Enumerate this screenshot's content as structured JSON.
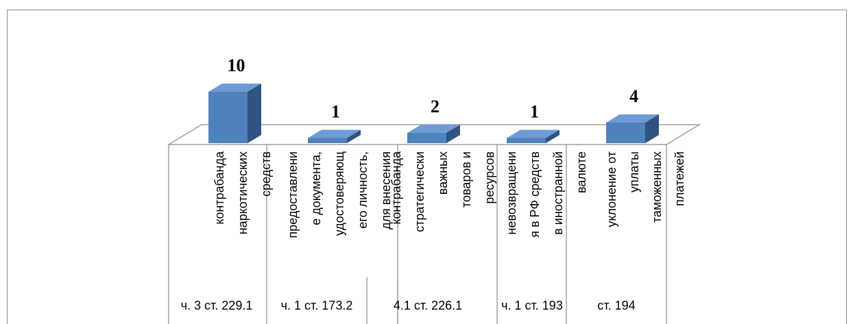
{
  "colors": {
    "bar_front": "#4f81bd",
    "bar_top": "#6f9bd4",
    "bar_side": "#2f5482",
    "axis_line": "#8c8c8c"
  },
  "chart_data": {
    "type": "bar",
    "title": "",
    "xlabel": "",
    "ylabel": "",
    "grid": false,
    "legend": "none",
    "categories": [
      "контрабанда наркотических средств",
      "предоставление документа, удостоверяющего личность, для внесения",
      "контрабанда стратегически важных товаров и ресурсов",
      "невозвращения в РФ средств в иностранной валюте",
      "уклонение от уплаты таможенных платежей"
    ],
    "values": [
      10,
      1,
      2,
      1,
      4
    ],
    "data_labels": [
      "10",
      "1",
      "2",
      "1",
      "4"
    ],
    "category_label_lines": [
      [
        "контрабанда",
        "наркотических",
        "средств"
      ],
      [
        "предоставлени",
        "е документа,",
        "удостоверяющ",
        "его личность,",
        "для внесения"
      ],
      [
        "контрабанда",
        "стратегически",
        "важных",
        "товаров и",
        "ресурсов"
      ],
      [
        "невозвращени",
        "я в РФ средств",
        "в иностранной",
        "валюте"
      ],
      [
        "уклонение от",
        "уплаты",
        "таможенных",
        "платежей"
      ]
    ],
    "group_labels": [
      "ч. 3 ст. 229.1",
      "ч. 1 ст. 173.2",
      "4.1 ст. 226.1",
      "ч. 1 ст. 193",
      "ст. 194"
    ]
  }
}
